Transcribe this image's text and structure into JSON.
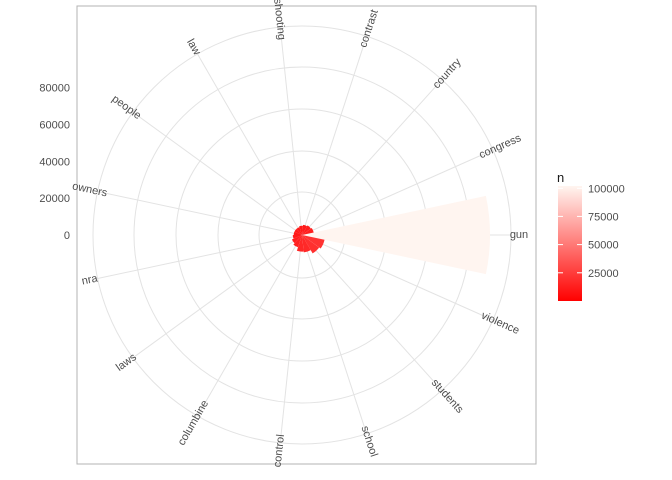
{
  "chart_data": {
    "type": "bar",
    "coord": "polar",
    "title": "",
    "xlabel": "",
    "ylabel": "",
    "categories": [
      "gun",
      "violence",
      "students",
      "school",
      "control",
      "columbine",
      "laws",
      "nra",
      "owners",
      "people",
      "law",
      "shooting",
      "contrast",
      "country",
      "congress"
    ],
    "values": [
      102000,
      12500,
      11500,
      9500,
      9000,
      7000,
      6000,
      5000,
      4500,
      4500,
      4500,
      5000,
      5500,
      6000,
      6500
    ],
    "ylim": [
      0,
      102000
    ],
    "yticks": [
      0,
      20000,
      40000,
      60000,
      80000
    ],
    "ytick_labels": [
      "0",
      "20000",
      "40000",
      "60000",
      "80000"
    ],
    "grid": true,
    "legend": {
      "title": "n",
      "position": "right",
      "type": "colorbar",
      "range": [
        0,
        102000
      ],
      "ticks": [
        25000,
        50000,
        75000,
        100000
      ],
      "tick_labels": [
        "25000",
        "50000",
        "75000",
        "100000"
      ],
      "color_low": "#ff0000",
      "color_high": "#fff5f0"
    }
  }
}
